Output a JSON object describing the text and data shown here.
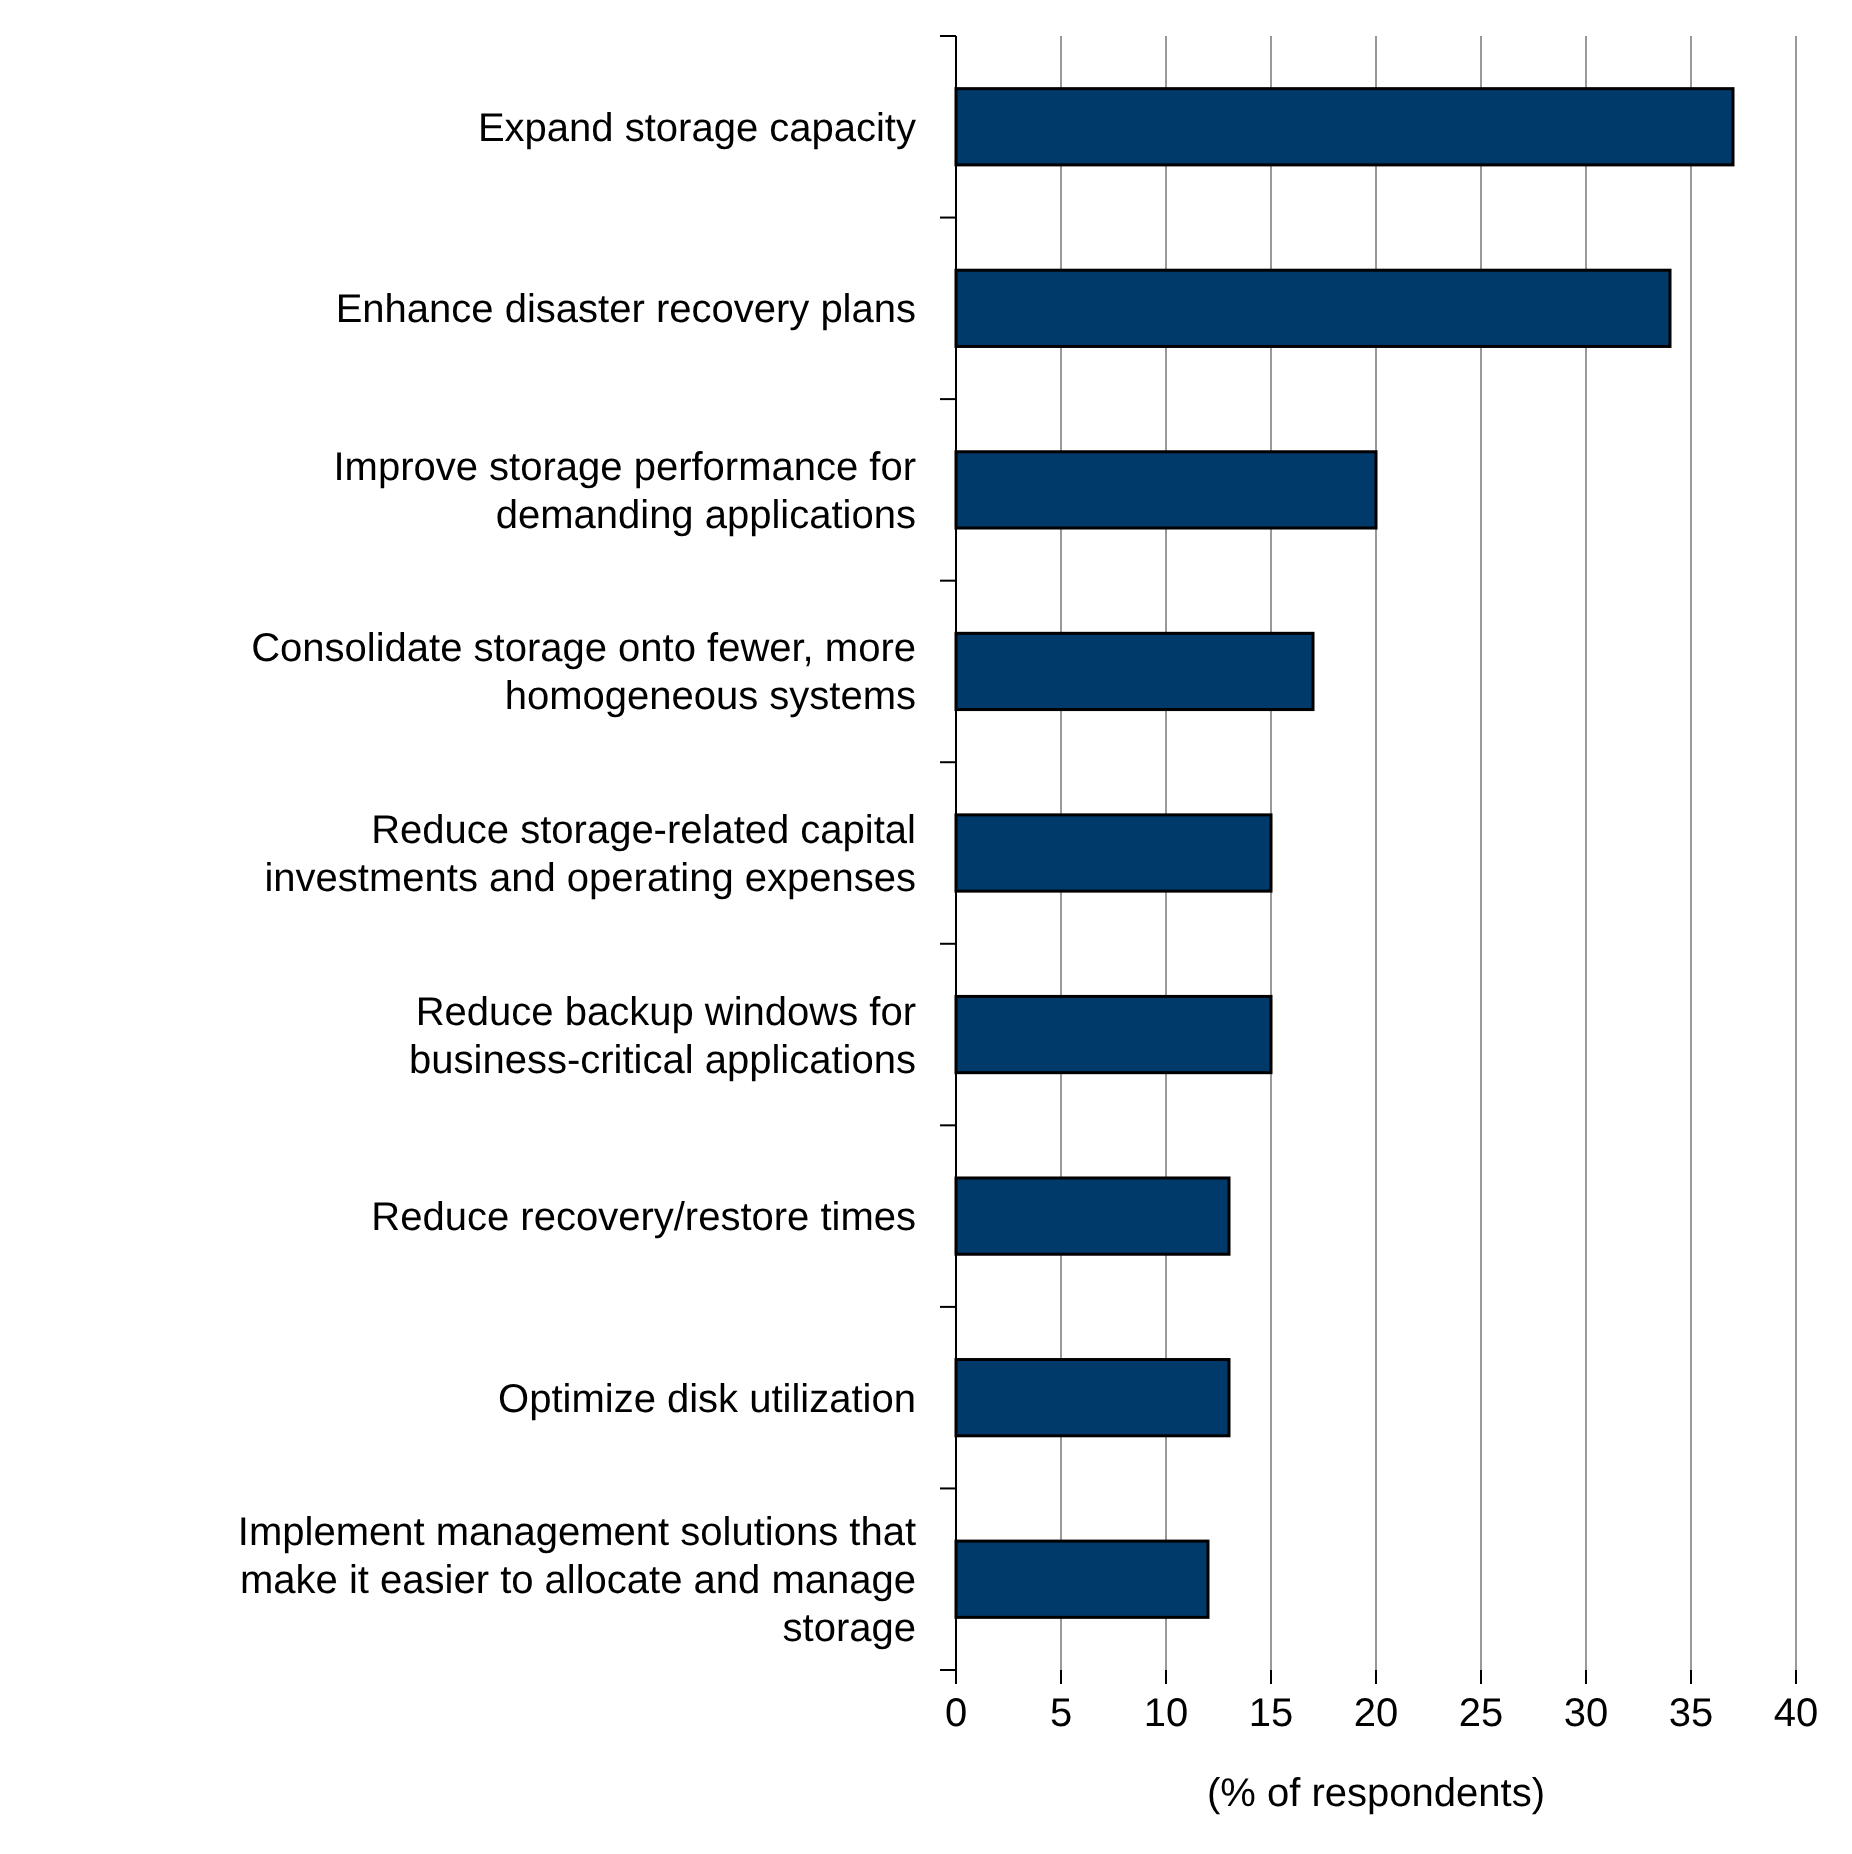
{
  "chart_data": {
    "type": "bar",
    "orientation": "horizontal",
    "xlabel": "(% of respondents)",
    "categories": [
      "Expand storage capacity",
      "Enhance disaster recovery plans",
      "Improve storage performance for demanding applications",
      "Consolidate storage onto fewer, more homogeneous systems",
      "Reduce storage-related capital investments and operating expenses",
      "Reduce backup windows for business-critical applications",
      "Reduce recovery/restore times",
      "Optimize disk utilization",
      "Implement management solutions that make it easier to allocate and manage storage"
    ],
    "values": [
      37,
      34,
      20,
      17,
      15,
      15,
      13,
      13,
      12
    ],
    "color": "#003a6b",
    "xlim": [
      0,
      40
    ],
    "xticks": [
      0,
      5,
      10,
      15,
      20,
      25,
      30,
      35,
      40
    ],
    "grid": "x"
  }
}
